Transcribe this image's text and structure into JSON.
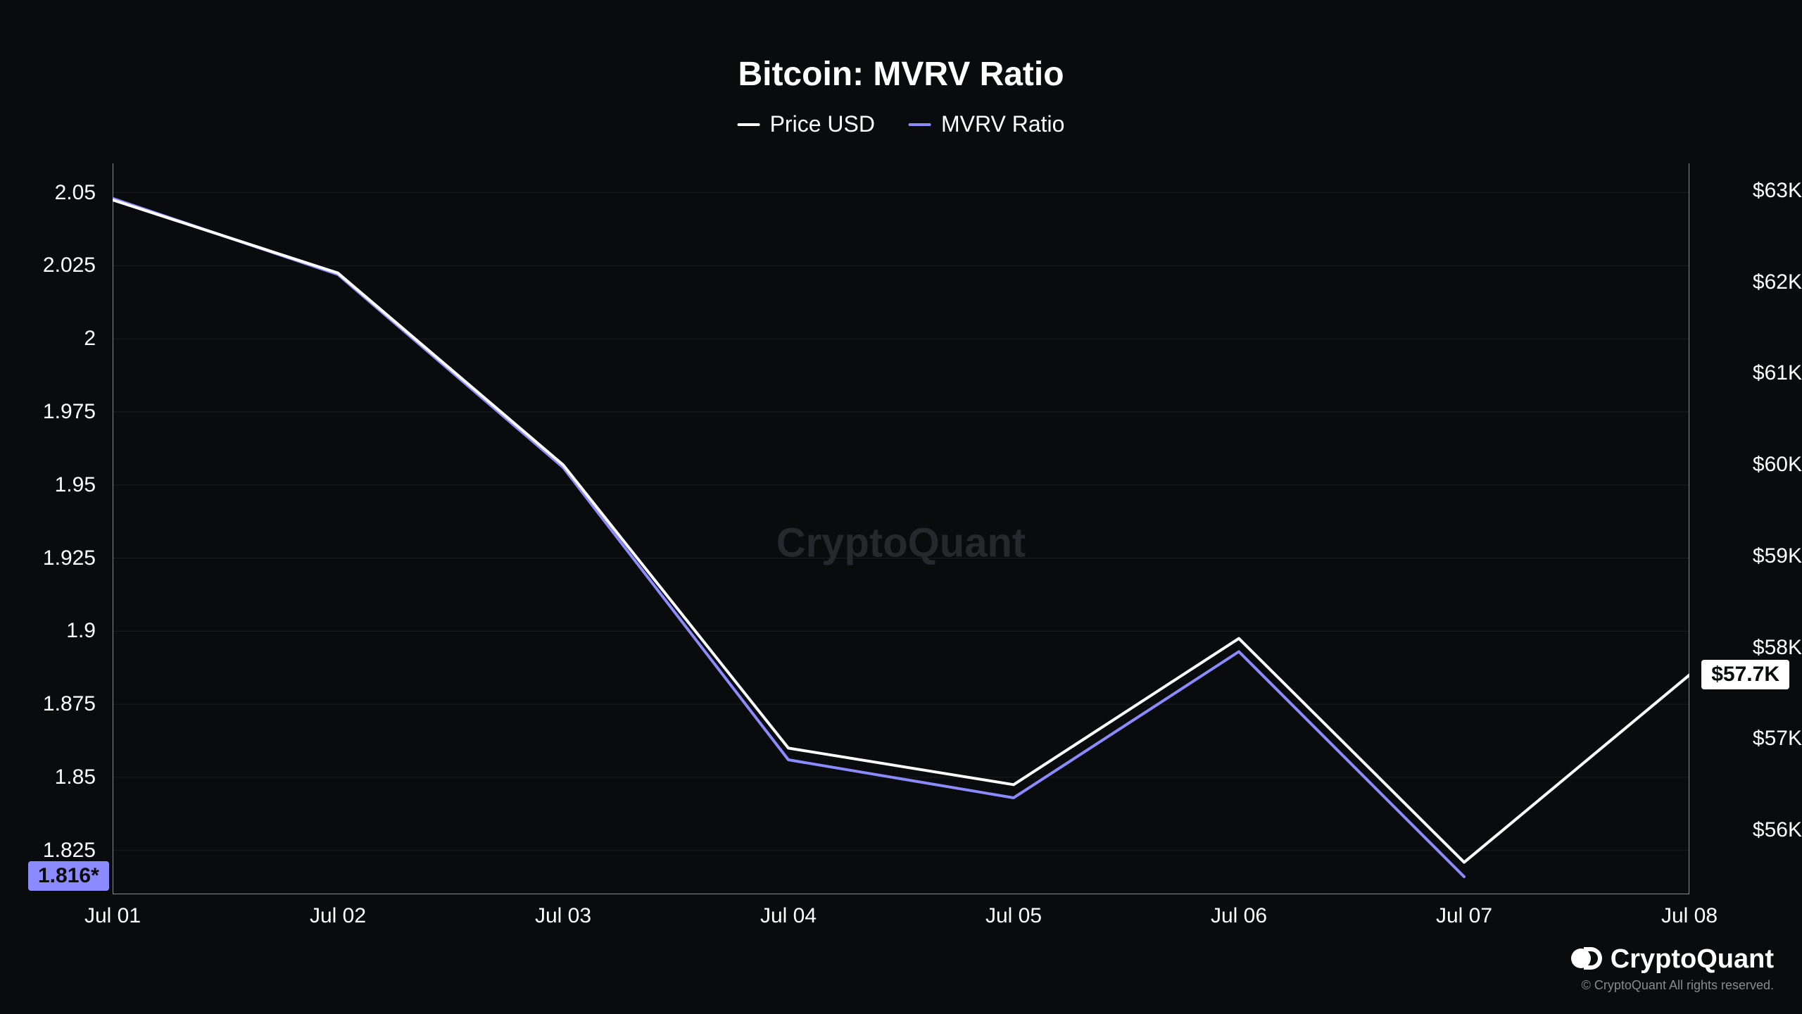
{
  "chart": {
    "type": "line",
    "title": "Bitcoin: MVRV Ratio",
    "title_fontsize": 48,
    "background_color": "#0a0b0d",
    "grid_color": "#1a1c20",
    "axis_border_color": "#8a8a8a",
    "watermark_text": "CryptoQuant",
    "watermark_color": "#26282d",
    "legend": [
      {
        "label": "Price USD",
        "color": "#ffffff"
      },
      {
        "label": "MVRV Ratio",
        "color": "#8b8bff"
      }
    ],
    "x": {
      "categories": [
        "Jul 01",
        "Jul 02",
        "Jul 03",
        "Jul 04",
        "Jul 05",
        "Jul 06",
        "Jul 07",
        "Jul 08"
      ],
      "label_fontsize": 30,
      "label_color": "#ffffff"
    },
    "y_left": {
      "min": 1.81,
      "max": 2.06,
      "ticks": [
        1.825,
        1.85,
        1.875,
        1.9,
        1.925,
        1.95,
        1.975,
        2,
        2.025,
        2.05
      ],
      "tick_labels": [
        "1.825",
        "1.85",
        "1.875",
        "1.9",
        "1.925",
        "1.95",
        "1.975",
        "2",
        "2.025",
        "2.05"
      ],
      "label_fontsize": 30,
      "label_color": "#ffffff",
      "current_badge": {
        "text": "1.816*",
        "bg": "#8b8bff",
        "fg": "#0a0b0d",
        "value": 1.816
      }
    },
    "y_right": {
      "min": 55300,
      "max": 63300,
      "ticks": [
        56000,
        57000,
        58000,
        59000,
        60000,
        61000,
        62000,
        63000
      ],
      "tick_labels": [
        "$56K",
        "$57K",
        "$58K",
        "$59K",
        "$60K",
        "$61K",
        "$62K",
        "$63K"
      ],
      "label_fontsize": 30,
      "label_color": "#ffffff",
      "current_badge": {
        "text": "$57.7K",
        "bg": "#ffffff",
        "fg": "#0a0b0d",
        "value": 57700
      }
    },
    "series": [
      {
        "name": "MVRV Ratio",
        "axis": "left",
        "color": "#8b8bff",
        "line_width": 4,
        "data": [
          2.048,
          2.022,
          1.956,
          1.856,
          1.843,
          1.893,
          1.816
        ],
        "end_index": 6
      },
      {
        "name": "Price USD",
        "axis": "right",
        "color": "#ffffff",
        "line_width": 4,
        "data": [
          62900,
          62100,
          60000,
          56900,
          56500,
          58100,
          55650,
          57700
        ],
        "end_index": 7
      }
    ]
  },
  "brand": {
    "name": "CryptoQuant",
    "copyright": "© CryptoQuant All rights reserved."
  }
}
